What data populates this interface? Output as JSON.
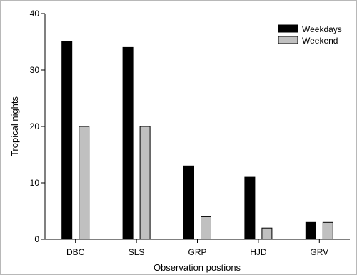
{
  "chart_data": {
    "type": "bar",
    "title": "",
    "xlabel": "Observation postions",
    "ylabel": "Tropical nights",
    "ylim": [
      0,
      40
    ],
    "yticks": [
      0,
      10,
      20,
      30,
      40
    ],
    "categories": [
      "DBC",
      "SLS",
      "GRP",
      "HJD",
      "GRV"
    ],
    "series": [
      {
        "name": "Weekdays",
        "values": [
          35,
          34,
          13,
          11,
          3
        ],
        "color": "#000000"
      },
      {
        "name": "Weekend",
        "values": [
          20,
          20,
          4,
          2,
          3
        ],
        "color": "#c0c0c0"
      }
    ],
    "grid": false,
    "legend_position": "top-right"
  }
}
